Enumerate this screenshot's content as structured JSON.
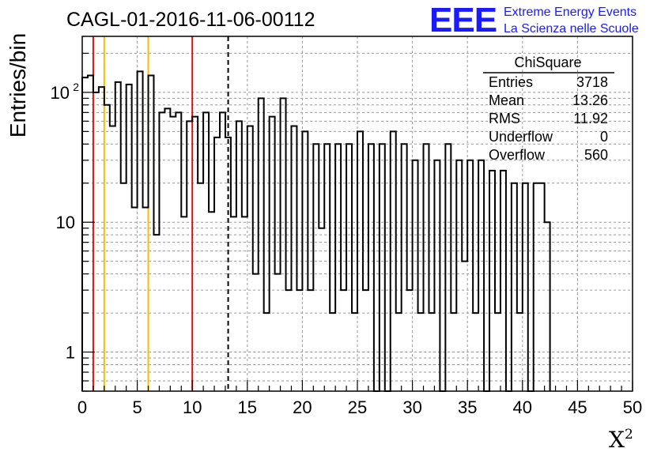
{
  "chart_data": {
    "type": "histogram",
    "title": "CAGL-01-2016-11-06-00112",
    "xlabel": "X",
    "xlabel_superscript": "2",
    "ylabel": "Entries/bin",
    "y_scale": "log",
    "xlim": [
      0,
      50
    ],
    "ylim": [
      0.5,
      270
    ],
    "grid": true,
    "bin_width": 0.5,
    "x_ticks": [
      "0",
      "5",
      "10",
      "15",
      "20",
      "25",
      "30",
      "35",
      "40",
      "45",
      "50"
    ],
    "y_ticks": [
      {
        "value": 1,
        "label": "1"
      },
      {
        "value": 10,
        "label": "10"
      },
      {
        "value": 100,
        "label": "10",
        "exponent": "2"
      }
    ],
    "bin_values": [
      130,
      135,
      100,
      110,
      80,
      55,
      120,
      20,
      115,
      13,
      145,
      13,
      135,
      8,
      70,
      75,
      65,
      70,
      11,
      60,
      65,
      20,
      70,
      12,
      45,
      70,
      45,
      11,
      60,
      11,
      55,
      4,
      90,
      2,
      65,
      4,
      90,
      3,
      55,
      3,
      50,
      3,
      40,
      9,
      40,
      2,
      40,
      3,
      40,
      2,
      50,
      3,
      40,
      0.1,
      40,
      0.1,
      50,
      2,
      40,
      3,
      30,
      2,
      40,
      2,
      30,
      0.1,
      40,
      2,
      30,
      5,
      30,
      2,
      30,
      0.1,
      25,
      2,
      25,
      0.1,
      20,
      2,
      20,
      0.1,
      20,
      20,
      10
    ]
  },
  "reference_lines": [
    {
      "x": 1,
      "color": "#dd1111",
      "style": "solid"
    },
    {
      "x": 2,
      "color": "#f0c000",
      "style": "solid"
    },
    {
      "x": 6,
      "color": "#f0c000",
      "style": "solid"
    },
    {
      "x": 10,
      "color": "#dd1111",
      "style": "solid"
    },
    {
      "x": 13.26,
      "color": "#000000",
      "style": "dashed"
    }
  ],
  "brand": {
    "logo_text": "EEE",
    "line1": "Extreme Energy Events",
    "line2": "La Scienza nelle Scuole",
    "color": "#1a1aff"
  },
  "stats_box": {
    "title": "ChiSquare",
    "rows": [
      {
        "label": "Entries",
        "value": "3718"
      },
      {
        "label": "Mean",
        "value": "13.26"
      },
      {
        "label": "RMS",
        "value": "11.92"
      },
      {
        "label": "Underflow",
        "value": "0"
      },
      {
        "label": "Overflow",
        "value": "560"
      }
    ]
  }
}
